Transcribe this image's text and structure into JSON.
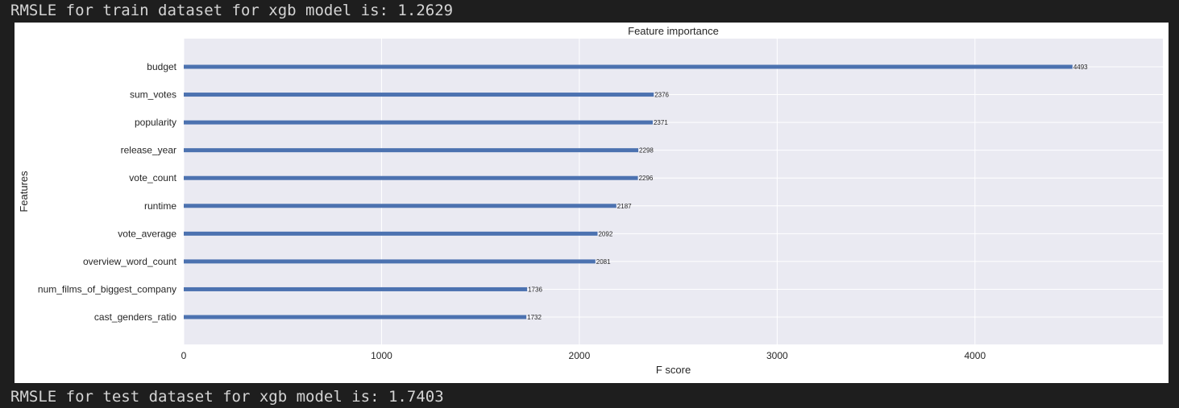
{
  "console": {
    "train_line": "RMSLE for train dataset for xgb model is: 1.2629",
    "test_line": "RMSLE for test dataset for xgb model is: 1.7403"
  },
  "colors": {
    "bar": "#4c72b0",
    "plot_bg": "#eaeaf2",
    "grid": "#ffffff",
    "console_bg": "#1e1e1e",
    "console_text": "#d4d4d4"
  },
  "chart_data": {
    "type": "bar",
    "orientation": "horizontal",
    "title": "Feature importance",
    "xlabel": "F score",
    "ylabel": "Features",
    "xlim": [
      0,
      4950
    ],
    "xticks": [
      0,
      1000,
      2000,
      3000,
      4000
    ],
    "grid": true,
    "categories": [
      "budget",
      "sum_votes",
      "popularity",
      "release_year",
      "vote_count",
      "runtime",
      "vote_average",
      "overview_word_count",
      "num_films_of_biggest_company",
      "cast_genders_ratio"
    ],
    "values": [
      4493,
      2376,
      2371,
      2298,
      2296,
      2187,
      2092,
      2081,
      1736,
      1732
    ],
    "data_labels": [
      "4493",
      "2376",
      "2371",
      "2298",
      "2296",
      "2187",
      "2092",
      "2081",
      "1736",
      "1732"
    ]
  }
}
